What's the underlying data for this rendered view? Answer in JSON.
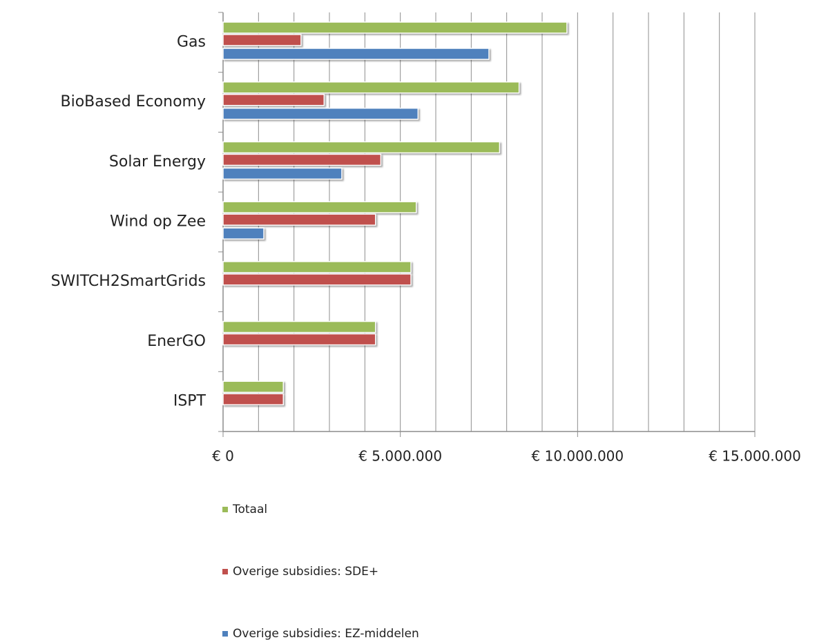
{
  "chart_data": {
    "type": "hbar",
    "categories": [
      "Gas",
      "BioBased Economy",
      "Solar Energy",
      "Wind op Zee",
      "SWITCH2SmartGrids",
      "EnerGO",
      "ISPT"
    ],
    "series": [
      {
        "name": "Totaal",
        "color": "#9bbb59",
        "values": [
          9700000,
          8350000,
          7800000,
          5450000,
          5300000,
          4300000,
          1700000
        ]
      },
      {
        "name": "Overige subsidies: SDE+",
        "color": "#c0504d",
        "values": [
          2200000,
          2850000,
          4450000,
          4300000,
          5300000,
          4300000,
          1700000
        ]
      },
      {
        "name": "Overige subsidies: EZ-middelen",
        "color": "#4f81bd",
        "values": [
          7500000,
          5500000,
          3350000,
          1150000,
          null,
          null,
          null
        ]
      }
    ],
    "xlim": [
      0,
      15000000
    ],
    "xticks": [
      {
        "value": 0,
        "label": "€ 0"
      },
      {
        "value": 5000000,
        "label": "€ 5.000.000"
      },
      {
        "value": 10000000,
        "label": "€ 10.000.000"
      },
      {
        "value": 15000000,
        "label": "€ 15.000.000"
      }
    ],
    "xminor_ticks": [
      1000000,
      2000000,
      3000000,
      4000000,
      6000000,
      7000000,
      8000000,
      9000000,
      11000000,
      12000000,
      13000000,
      14000000
    ],
    "grid": true,
    "legend": "bottom"
  }
}
